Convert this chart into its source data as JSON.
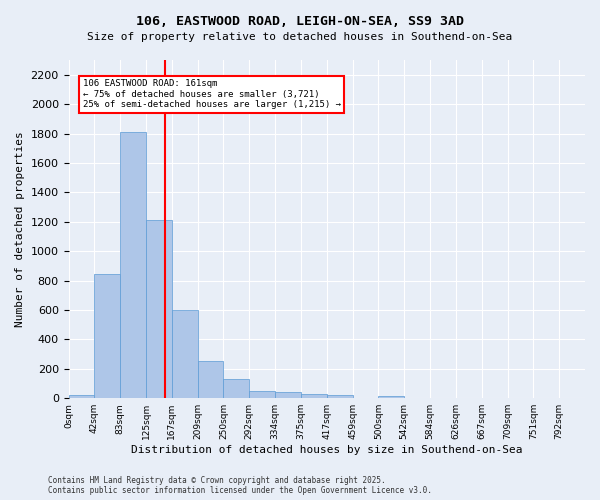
{
  "title_line1": "106, EASTWOOD ROAD, LEIGH-ON-SEA, SS9 3AD",
  "title_line2": "Size of property relative to detached houses in Southend-on-Sea",
  "xlabel": "Distribution of detached houses by size in Southend-on-Sea",
  "ylabel": "Number of detached properties",
  "bar_values": [
    25,
    845,
    1810,
    1210,
    600,
    255,
    130,
    52,
    45,
    32,
    20,
    0,
    15,
    0,
    0,
    0,
    0,
    0,
    0,
    0
  ],
  "bin_labels": [
    "0sqm",
    "42sqm",
    "83sqm",
    "125sqm",
    "167sqm",
    "209sqm",
    "250sqm",
    "292sqm",
    "334sqm",
    "375sqm",
    "417sqm",
    "459sqm",
    "500sqm",
    "542sqm",
    "584sqm",
    "626sqm",
    "667sqm",
    "709sqm",
    "751sqm",
    "792sqm"
  ],
  "bar_color": "#aec6e8",
  "bar_edge_color": "#5b9bd5",
  "vline_x": 3.75,
  "vline_color": "red",
  "annotation_text": "106 EASTWOOD ROAD: 161sqm\n← 75% of detached houses are smaller (3,721)\n25% of semi-detached houses are larger (1,215) →",
  "annotation_box_color": "white",
  "annotation_box_edge": "red",
  "ylim": [
    0,
    2300
  ],
  "yticks": [
    0,
    200,
    400,
    600,
    800,
    1000,
    1200,
    1400,
    1600,
    1800,
    2000,
    2200
  ],
  "background_color": "#e8eef7",
  "footer_text": "Contains HM Land Registry data © Crown copyright and database right 2025.\nContains public sector information licensed under the Open Government Licence v3.0.",
  "fig_width": 6.0,
  "fig_height": 5.0
}
